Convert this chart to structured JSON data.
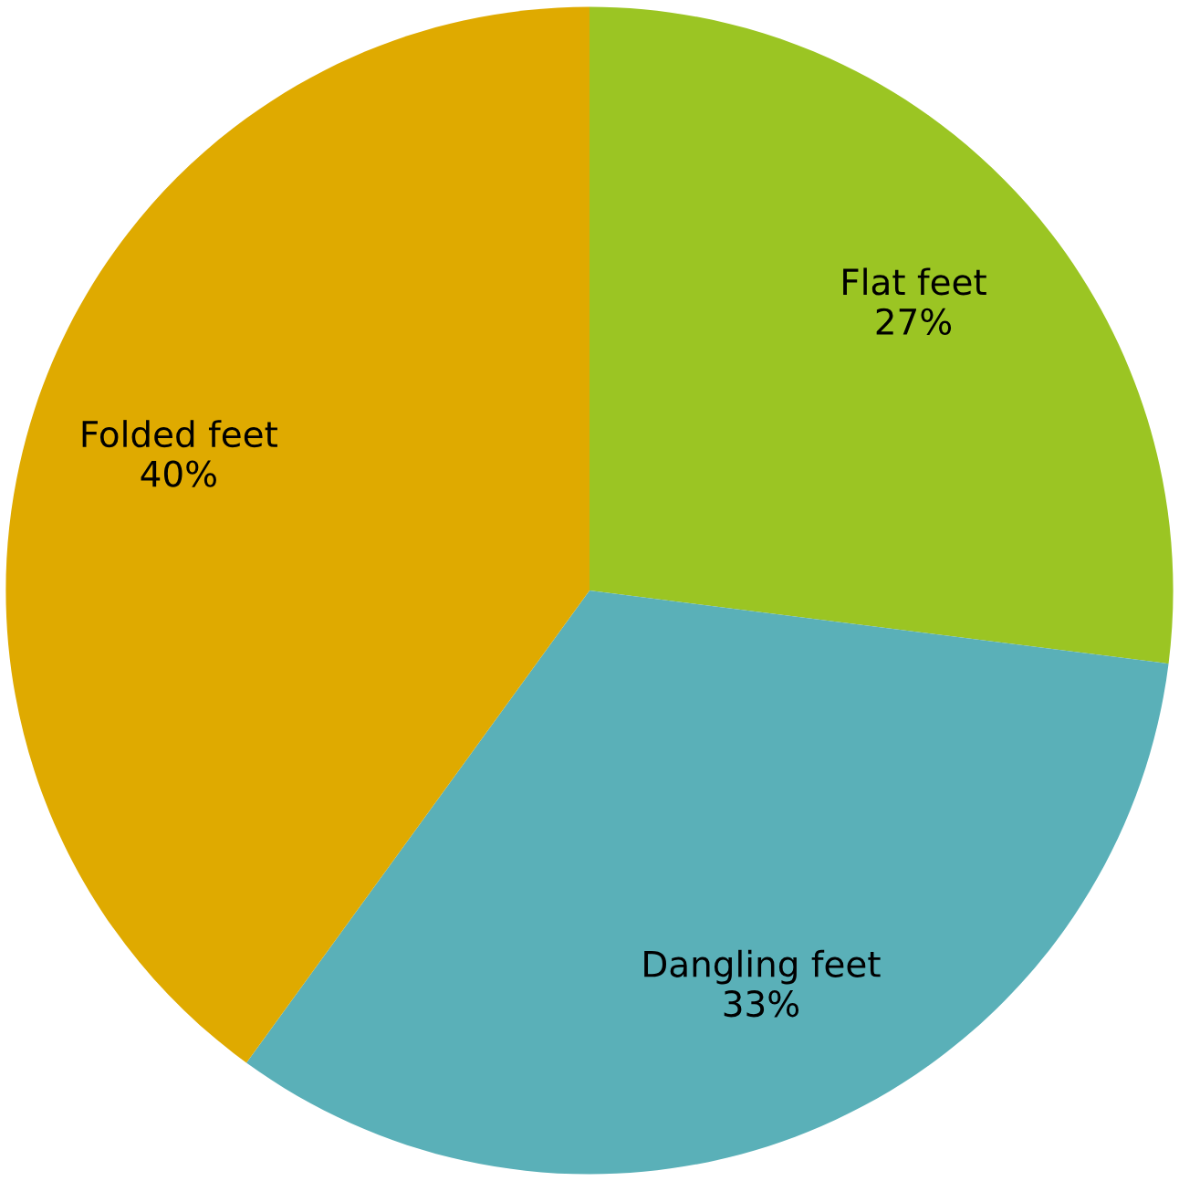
{
  "chart_data": {
    "type": "pie",
    "categories": [
      "Flat feet",
      "Dangling feet",
      "Folded feet"
    ],
    "values": [
      27,
      33,
      40
    ],
    "value_labels": [
      "27%",
      "33%",
      "40%"
    ],
    "colors": [
      "#9bc523",
      "#5ab0b8",
      "#dfaa00"
    ],
    "legend": false
  }
}
